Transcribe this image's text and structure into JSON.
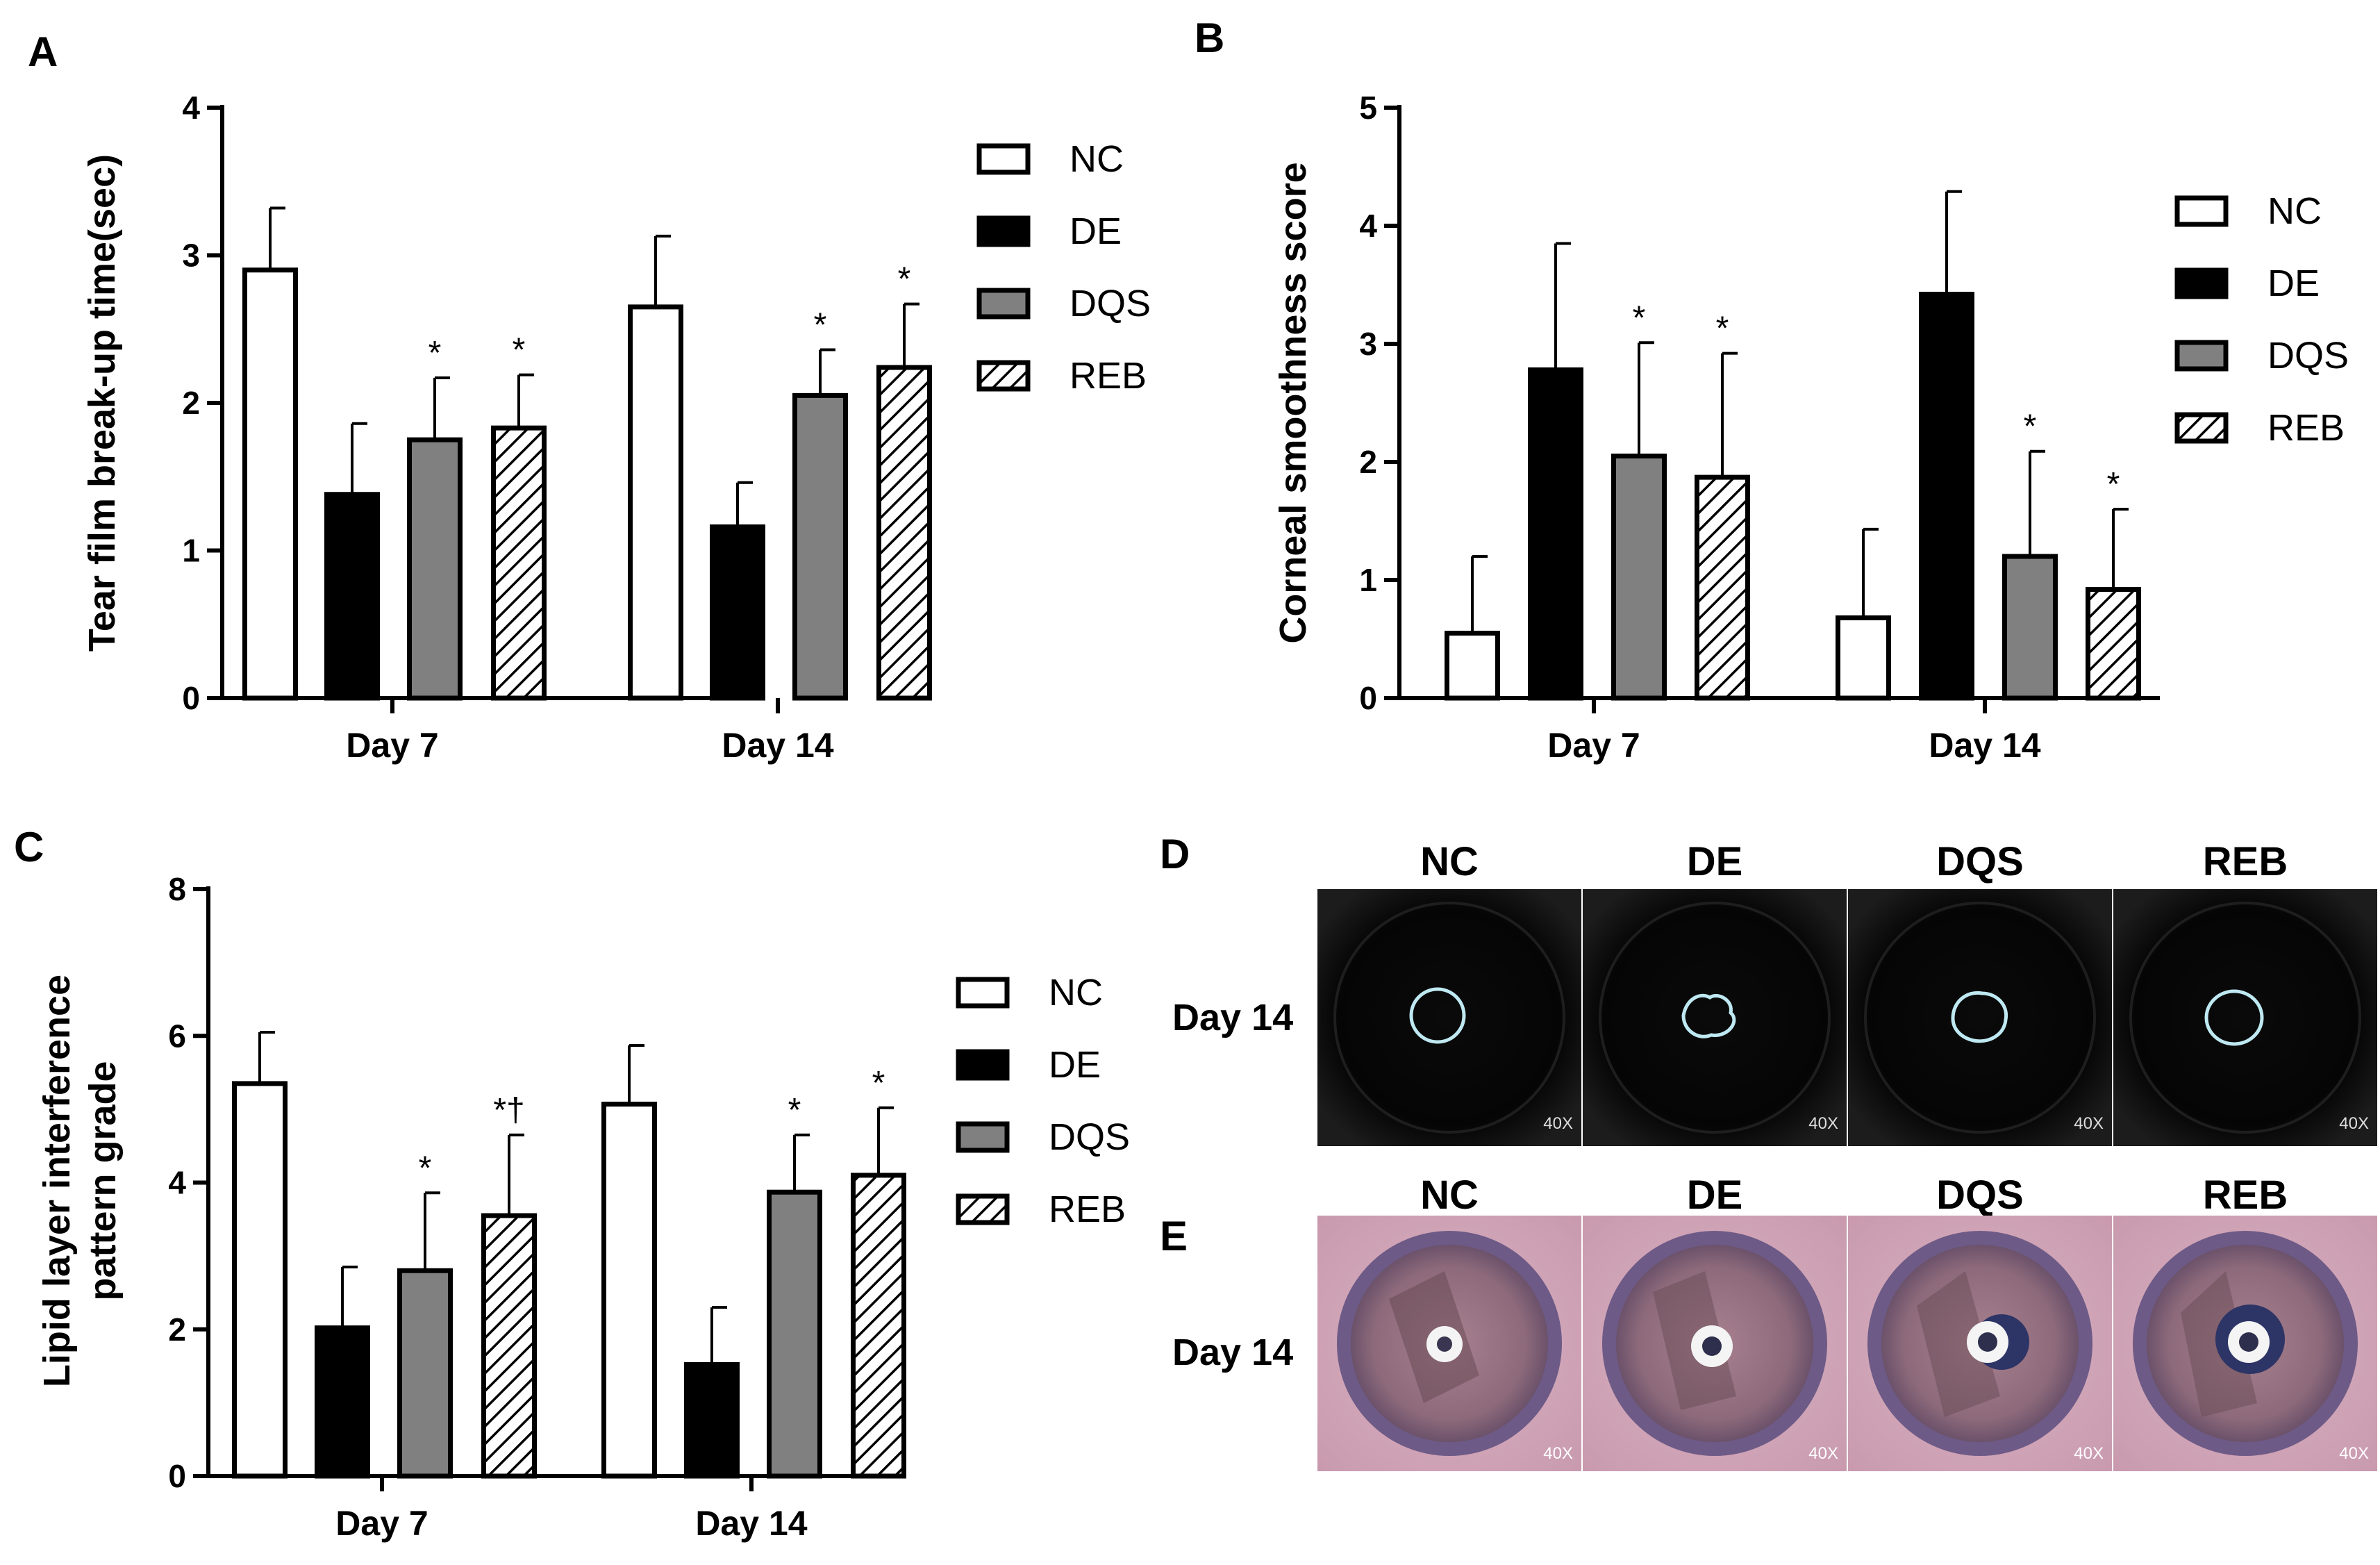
{
  "colors": {
    "NC": "#ffffff",
    "DE": "#000000",
    "DQS": "#808080",
    "REB": "hatch",
    "axis": "#000000"
  },
  "chart_data": [
    {
      "panel": "A",
      "type": "bar",
      "ylabel": "Tear film break-up time(sec)",
      "xlabel": "",
      "ylim": [
        0,
        4
      ],
      "yticks": [
        "0",
        "1",
        "2",
        "3",
        "4"
      ],
      "categories": [
        "Day 7",
        "Day 14"
      ],
      "legend_position": "right",
      "series": [
        {
          "name": "NC",
          "values": [
            2.9,
            2.65
          ],
          "errors": [
            0.42,
            0.48
          ],
          "markers": [
            "",
            ""
          ]
        },
        {
          "name": "DE",
          "values": [
            1.38,
            1.16
          ],
          "errors": [
            0.48,
            0.3
          ],
          "markers": [
            "",
            ""
          ]
        },
        {
          "name": "DQS",
          "values": [
            1.75,
            2.05
          ],
          "errors": [
            0.42,
            0.31
          ],
          "markers": [
            "*",
            "*"
          ]
        },
        {
          "name": "REB",
          "values": [
            1.83,
            2.24
          ],
          "errors": [
            0.36,
            0.43
          ],
          "markers": [
            "*",
            "*"
          ]
        }
      ]
    },
    {
      "panel": "B",
      "type": "bar",
      "ylabel": "Corneal smoothness score",
      "xlabel": "",
      "ylim": [
        0,
        5
      ],
      "yticks": [
        "0",
        "1",
        "2",
        "3",
        "4",
        "5"
      ],
      "categories": [
        "Day 7",
        "Day 14"
      ],
      "legend_position": "right",
      "series": [
        {
          "name": "NC",
          "values": [
            0.55,
            0.68
          ],
          "errors": [
            0.65,
            0.75
          ],
          "markers": [
            "",
            ""
          ]
        },
        {
          "name": "DE",
          "values": [
            2.78,
            3.42
          ],
          "errors": [
            1.07,
            0.87
          ],
          "markers": [
            "",
            ""
          ]
        },
        {
          "name": "DQS",
          "values": [
            2.05,
            1.2
          ],
          "errors": [
            0.96,
            0.89
          ],
          "markers": [
            "*",
            "*"
          ]
        },
        {
          "name": "REB",
          "values": [
            1.87,
            0.92
          ],
          "errors": [
            1.05,
            0.68
          ],
          "markers": [
            "*",
            "*"
          ]
        }
      ]
    },
    {
      "panel": "C",
      "type": "bar",
      "ylabel": "Lipid layer interference pattern grade",
      "ylabel_lines": [
        "Lipid layer interference",
        "pattern grade"
      ],
      "xlabel": "",
      "ylim": [
        0,
        8
      ],
      "yticks": [
        "0",
        "2",
        "4",
        "6",
        "8"
      ],
      "categories": [
        "Day 7",
        "Day 14"
      ],
      "legend_position": "right",
      "series": [
        {
          "name": "NC",
          "values": [
            5.35,
            5.07
          ],
          "errors": [
            0.7,
            0.8
          ],
          "markers": [
            "",
            ""
          ]
        },
        {
          "name": "DE",
          "values": [
            2.02,
            1.52
          ],
          "errors": [
            0.83,
            0.78
          ],
          "markers": [
            "",
            ""
          ]
        },
        {
          "name": "DQS",
          "values": [
            2.8,
            3.87
          ],
          "errors": [
            1.06,
            0.78
          ],
          "markers": [
            "*",
            "*"
          ]
        },
        {
          "name": "REB",
          "values": [
            3.55,
            4.1
          ],
          "errors": [
            1.1,
            0.92
          ],
          "markers": [
            "*†",
            "*"
          ]
        }
      ]
    }
  ],
  "panels": {
    "A": {
      "letter": "A"
    },
    "B": {
      "letter": "B"
    },
    "C": {
      "letter": "C"
    },
    "D": {
      "letter": "D",
      "row_label": "Day 14",
      "columns": [
        "NC",
        "DE",
        "DQS",
        "REB"
      ],
      "magnification": "40X"
    },
    "E": {
      "letter": "E",
      "row_label": "Day 14",
      "columns": [
        "NC",
        "DE",
        "DQS",
        "REB"
      ],
      "magnification": "40X"
    }
  }
}
